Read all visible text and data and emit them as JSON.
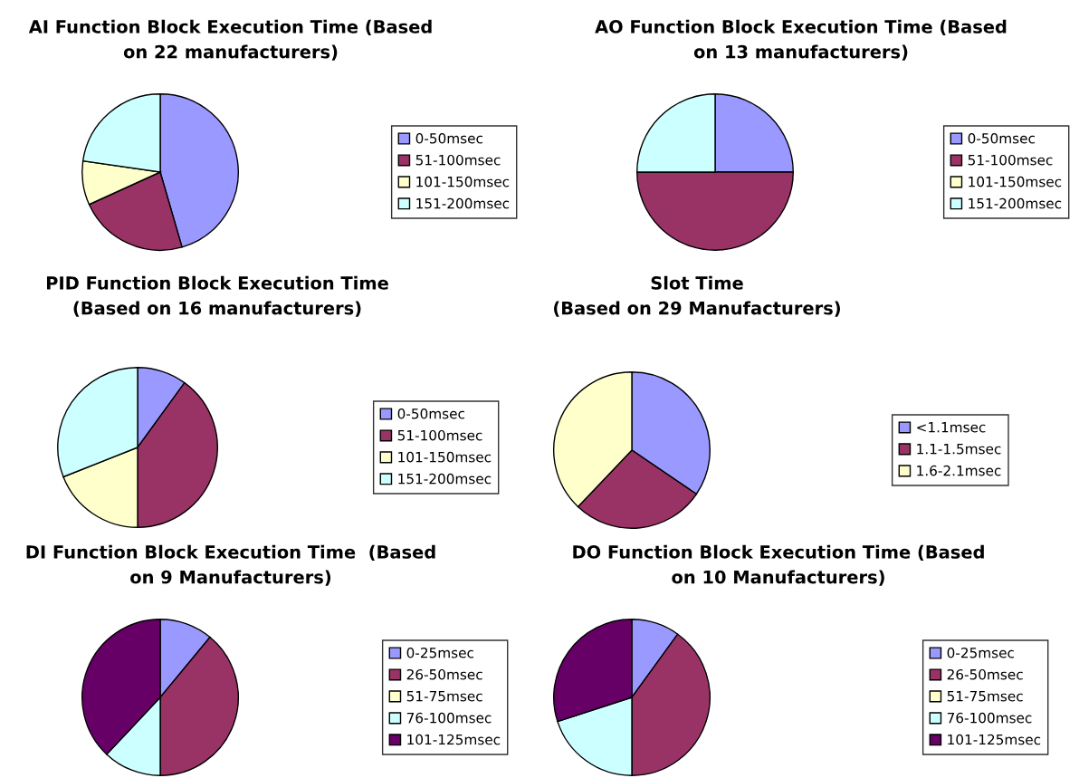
{
  "chart_data": [
    {
      "type": "pie",
      "title": "AI Function Block Execution Time (Based\non 22 manufacturers)",
      "categories": [
        "0-50msec",
        "51-100msec",
        "101-150msec",
        "151-200msec"
      ],
      "values": [
        45.5,
        22.7,
        9.1,
        22.7
      ],
      "colors": [
        "#9999ff",
        "#993366",
        "#ffffcc",
        "#ccffff"
      ],
      "legend": "right"
    },
    {
      "type": "pie",
      "title": "AO Function Block Execution Time (Based\non 13 manufacturers)",
      "categories": [
        "0-50msec",
        "51-100msec",
        "101-150msec",
        "151-200msec"
      ],
      "values": [
        25,
        50,
        0,
        25
      ],
      "colors": [
        "#9999ff",
        "#993366",
        "#ffffcc",
        "#ccffff"
      ],
      "legend": "right"
    },
    {
      "type": "pie",
      "title": "PID Function Block Execution Time\n(Based on 16 manufacturers)",
      "categories": [
        "0-50msec",
        "51-100msec",
        "101-150msec",
        "151-200msec"
      ],
      "values": [
        10,
        40,
        19,
        31
      ],
      "colors": [
        "#9999ff",
        "#993366",
        "#ffffcc",
        "#ccffff"
      ],
      "legend": "right"
    },
    {
      "type": "pie",
      "title": "Slot Time\n(Based on 29 Manufacturers)",
      "categories": [
        "<1.1msec",
        "1.1-1.5msec",
        "1.6-2.1msec"
      ],
      "values": [
        34.5,
        27.6,
        37.9
      ],
      "colors": [
        "#9999ff",
        "#993366",
        "#ffffcc"
      ],
      "legend": "right"
    },
    {
      "type": "pie",
      "title": "DI Function Block Execution Time  (Based\non 9 Manufacturers)",
      "categories": [
        "0-25msec",
        "26-50msec",
        "51-75msec",
        "76-100msec",
        "101-125msec"
      ],
      "values": [
        11,
        39,
        0,
        12,
        38
      ],
      "colors": [
        "#9999ff",
        "#993366",
        "#ffffcc",
        "#ccffff",
        "#660066"
      ],
      "legend": "right"
    },
    {
      "type": "pie",
      "title": "DO Function Block Execution Time (Based\non 10 Manufacturers)",
      "categories": [
        "0-25msec",
        "26-50msec",
        "51-75msec",
        "76-100msec",
        "101-125msec"
      ],
      "values": [
        10,
        40,
        0,
        20,
        30
      ],
      "colors": [
        "#9999ff",
        "#993366",
        "#ffffcc",
        "#ccffff",
        "#660066"
      ],
      "legend": "right"
    }
  ]
}
